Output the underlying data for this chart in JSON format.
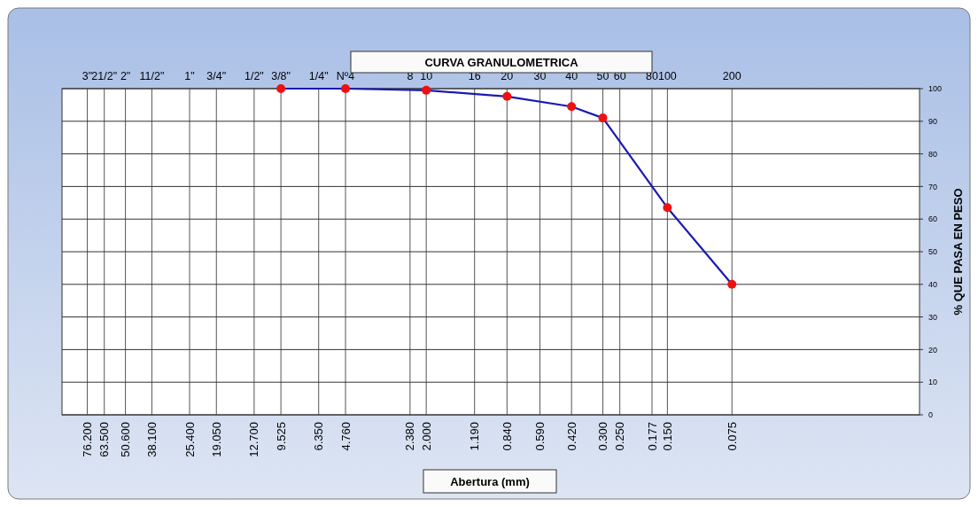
{
  "chart_data": {
    "type": "line",
    "title": "CURVA GRANULOMETRICA",
    "xlabel": "Abertura (mm)",
    "ylabel": "% QUE PASA EN PESO",
    "log": "x",
    "grid": true,
    "marker": "circle",
    "line_style": "solid",
    "xlim": [
      100,
      0.01
    ],
    "xticks": [
      {
        "value": 76.2,
        "label": "76.200"
      },
      {
        "value": 63.5,
        "label": "63.500"
      },
      {
        "value": 50.6,
        "label": "50.600"
      },
      {
        "value": 38.1,
        "label": "38.100"
      },
      {
        "value": 25.4,
        "label": "25.400"
      },
      {
        "value": 19.05,
        "label": "19.050"
      },
      {
        "value": 12.7,
        "label": "12.700"
      },
      {
        "value": 9.525,
        "label": "9.525"
      },
      {
        "value": 6.35,
        "label": "6.350"
      },
      {
        "value": 4.76,
        "label": "4.760"
      },
      {
        "value": 2.38,
        "label": "2.380"
      },
      {
        "value": 2.0,
        "label": "2.000"
      },
      {
        "value": 1.19,
        "label": "1.190"
      },
      {
        "value": 0.84,
        "label": "0.840"
      },
      {
        "value": 0.59,
        "label": "0.590"
      },
      {
        "value": 0.42,
        "label": "0.420"
      },
      {
        "value": 0.3,
        "label": "0.300"
      },
      {
        "value": 0.25,
        "label": "0.250"
      },
      {
        "value": 0.177,
        "label": "0.177"
      },
      {
        "value": 0.15,
        "label": "0.150"
      },
      {
        "value": 0.075,
        "label": "0.075"
      }
    ],
    "annotations": [
      "3\"",
      "21/2\"",
      "2\"",
      "11/2\"",
      "1\"",
      "3/4\"",
      "1/2\"",
      "3/8\"",
      "1/4\"",
      "Nº4",
      "8",
      "10",
      "16",
      "20",
      "30",
      "40",
      "50",
      "60",
      "80",
      "100",
      "200"
    ],
    "ylim": [
      0,
      100
    ],
    "yticks": [
      0,
      10,
      20,
      30,
      40,
      50,
      60,
      70,
      80,
      90,
      100
    ],
    "series": [
      {
        "color": "#1a1ab0",
        "colors": [
          "#ee1111",
          "#ee1111",
          "#ee1111",
          "#ee1111",
          "#ee1111",
          "#ee1111",
          "#ee1111",
          "#ee1111"
        ],
        "x": [
          9.525,
          4.76,
          2.0,
          0.84,
          0.42,
          0.3,
          0.15,
          0.075
        ],
        "values": [
          100,
          100,
          99.5,
          97.6,
          94.5,
          91,
          63.5,
          40
        ]
      }
    ]
  }
}
